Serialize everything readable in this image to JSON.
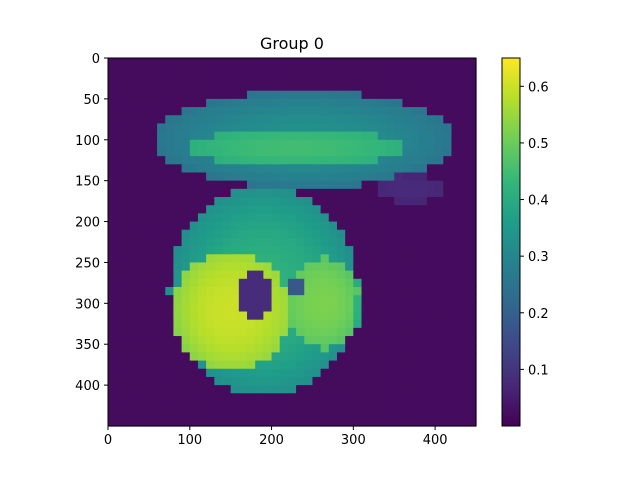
{
  "chart_data": {
    "type": "heatmap",
    "title": "Group 0",
    "xlabel": "",
    "ylabel": "",
    "x_extent": [
      0,
      450
    ],
    "y_extent": [
      450,
      0
    ],
    "x_ticks": [
      0,
      100,
      200,
      300,
      400
    ],
    "y_ticks": [
      0,
      50,
      100,
      150,
      200,
      250,
      300,
      350,
      400
    ],
    "colormap": "viridis",
    "color_range": [
      0.0,
      0.65
    ],
    "colorbar_ticks": [
      0.1,
      0.2,
      0.3,
      0.4,
      0.5,
      0.6
    ],
    "grid_shape": [
      45,
      45
    ],
    "background_value": 0.02,
    "regions": [
      {
        "name": "upper blob",
        "center": [
          240,
          100
        ],
        "radii": [
          185,
          60
        ],
        "value": 0.33
      },
      {
        "name": "upper blob bright band",
        "center": [
          230,
          110
        ],
        "radii": [
          130,
          22
        ],
        "value": 0.45
      },
      {
        "name": "lower blob",
        "center": [
          190,
          285
        ],
        "radii": [
          115,
          130
        ],
        "value": 0.42
      },
      {
        "name": "lower blob bright core",
        "center": [
          150,
          310
        ],
        "radii": [
          70,
          75
        ],
        "value": 0.6
      },
      {
        "name": "lower blob right area",
        "center": [
          265,
          300
        ],
        "radii": [
          45,
          55
        ],
        "value": 0.52
      },
      {
        "name": "dark spot",
        "center": [
          180,
          290
        ],
        "radii": [
          18,
          30
        ],
        "value": 0.08
      },
      {
        "name": "small spot",
        "center": [
          230,
          280
        ],
        "radii": [
          12,
          12
        ],
        "value": 0.18
      },
      {
        "name": "faint halo",
        "center": [
          370,
          160
        ],
        "radii": [
          45,
          18
        ],
        "value": 0.08
      }
    ]
  },
  "colors": {
    "viridis": [
      "#440154",
      "#482878",
      "#3e4989",
      "#31688e",
      "#26828e",
      "#1f9e89",
      "#35b779",
      "#6ece58",
      "#b5de2b",
      "#fde725"
    ]
  }
}
